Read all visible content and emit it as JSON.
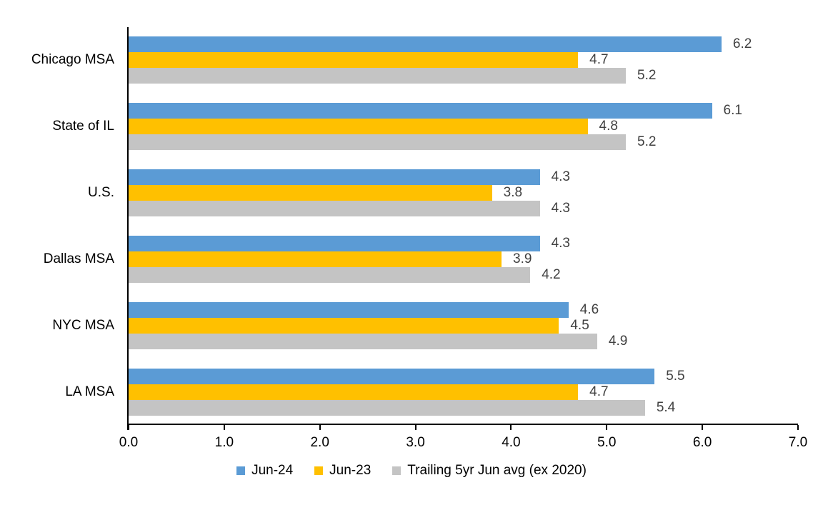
{
  "chart_data": {
    "type": "bar",
    "orientation": "horizontal",
    "title": "",
    "xlabel": "",
    "ylabel": "",
    "categories": [
      "Chicago MSA",
      "State of IL",
      "U.S.",
      "Dallas MSA",
      "NYC MSA",
      "LA MSA"
    ],
    "series": [
      {
        "name": "Jun-24",
        "color": "#5B9BD5",
        "values": [
          6.2,
          6.1,
          4.3,
          4.3,
          4.6,
          5.5
        ]
      },
      {
        "name": "Jun-23",
        "color": "#FFC000",
        "values": [
          4.7,
          4.8,
          3.8,
          3.9,
          4.5,
          4.7
        ]
      },
      {
        "name": "Trailing 5yr Jun avg (ex 2020)",
        "color": "#C4C4C4",
        "values": [
          5.2,
          5.2,
          4.3,
          4.2,
          4.9,
          5.4
        ]
      }
    ],
    "x_ticks": [
      "0.0",
      "1.0",
      "2.0",
      "3.0",
      "4.0",
      "5.0",
      "6.0",
      "7.0"
    ],
    "xlim": [
      0,
      7
    ],
    "grid": false,
    "legend_position": "bottom",
    "data_labels_shown": true,
    "data_label_color": "#404040",
    "axis_color": "#000000",
    "value_decimals": 1
  }
}
